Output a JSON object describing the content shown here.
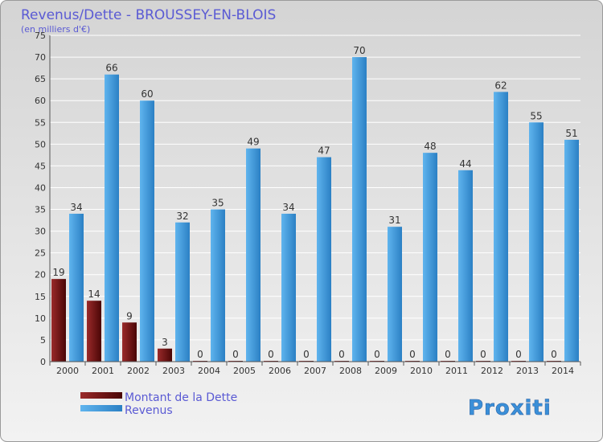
{
  "chart_data": {
    "type": "bar",
    "title": "Revenus/Dette - BROUSSEY-EN-BLOIS",
    "subtitle": "(en milliers d'€)",
    "xlabel": "",
    "ylabel": "",
    "ylim": [
      0,
      75
    ],
    "yticks": [
      0,
      5,
      10,
      15,
      20,
      25,
      30,
      35,
      40,
      45,
      50,
      55,
      60,
      65,
      70,
      75
    ],
    "grid": true,
    "legend_position": "bottom-left",
    "categories": [
      "2000",
      "2001",
      "2002",
      "2003",
      "2004",
      "2005",
      "2006",
      "2007",
      "2008",
      "2009",
      "2010",
      "2011",
      "2012",
      "2013",
      "2014"
    ],
    "series": [
      {
        "name": "Montant de la Dette",
        "color": "#8b1a1a",
        "values": [
          19,
          14,
          9,
          3,
          0,
          0,
          0,
          0,
          0,
          0,
          0,
          0,
          0,
          0,
          0
        ]
      },
      {
        "name": "Revenus",
        "color": "#3d9be0",
        "values": [
          34,
          66,
          60,
          32,
          35,
          49,
          34,
          47,
          70,
          31,
          48,
          44,
          62,
          55,
          51
        ]
      }
    ]
  },
  "colors": {
    "background": "#e6e6e6",
    "title": "#5a5ad4",
    "text": "#333333",
    "legend_text": "#5a5ad4"
  },
  "logo": {
    "text": "Proxiti"
  }
}
